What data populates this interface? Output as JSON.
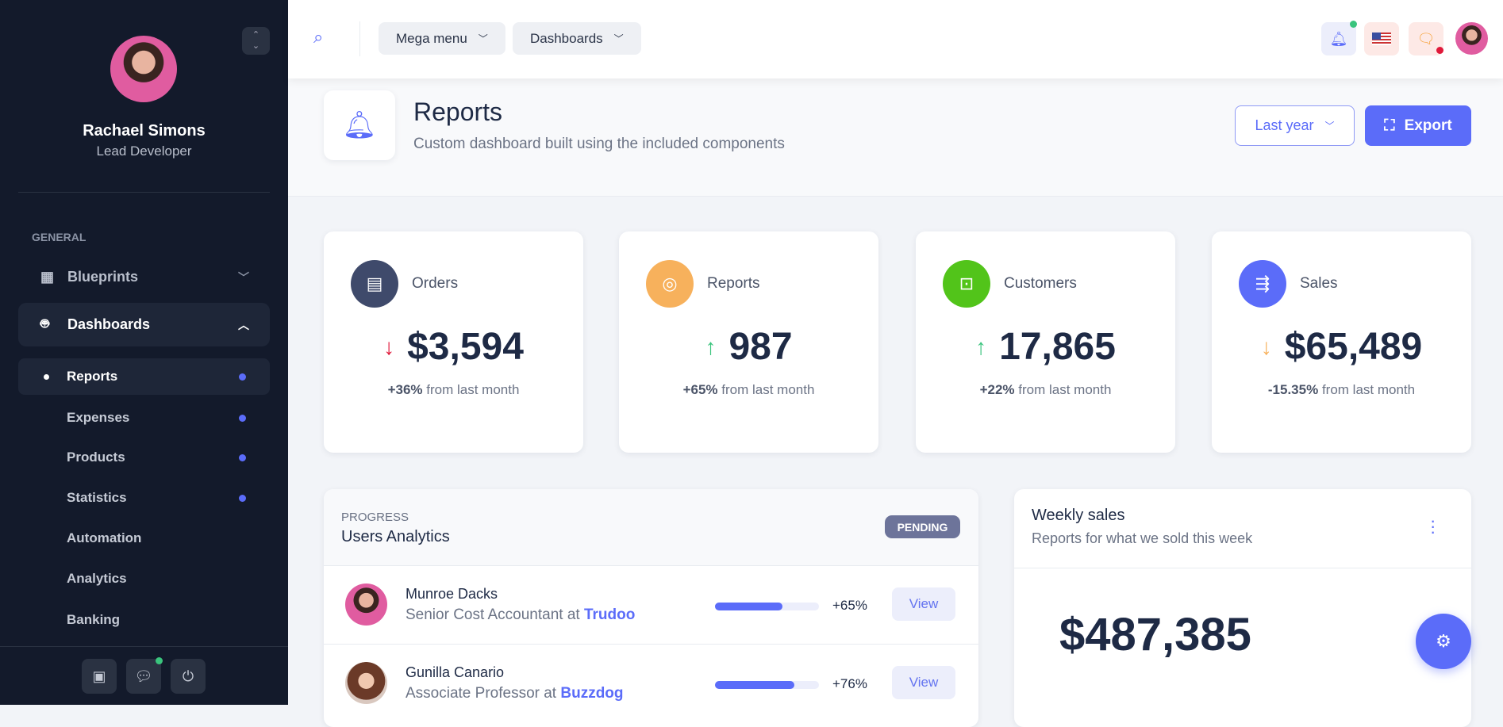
{
  "sidebar": {
    "user": {
      "name": "Rachael Simons",
      "role": "Lead Developer"
    },
    "section": "GENERAL",
    "items": [
      {
        "label": "Blueprints"
      },
      {
        "label": "Dashboards"
      }
    ],
    "subitems": [
      {
        "label": "Reports",
        "dot": true
      },
      {
        "label": "Expenses",
        "dot": true
      },
      {
        "label": "Products",
        "dot": true
      },
      {
        "label": "Statistics",
        "dot": true
      },
      {
        "label": "Automation",
        "dot": false
      },
      {
        "label": "Analytics",
        "dot": false
      },
      {
        "label": "Banking",
        "dot": false
      }
    ]
  },
  "header": {
    "mega_menu": "Mega menu",
    "dashboards": "Dashboards"
  },
  "page": {
    "title": "Reports",
    "subtitle": "Custom dashboard built using the included components",
    "period": "Last year",
    "export": "Export"
  },
  "stats": [
    {
      "label": "Orders",
      "value": "$3,594",
      "change": "+36%",
      "suffix": "from last month",
      "trend": "down",
      "arrow_color": "#e0193a",
      "icon_color": "#3f4a6b"
    },
    {
      "label": "Reports",
      "value": "987",
      "change": "+65%",
      "suffix": "from last month",
      "trend": "up",
      "arrow_color": "#3ac47d",
      "icon_color": "#f7b15c"
    },
    {
      "label": "Customers",
      "value": "17,865",
      "change": "+22%",
      "suffix": "from last month",
      "trend": "up",
      "arrow_color": "#3ac47d",
      "icon_color": "#52c41a"
    },
    {
      "label": "Sales",
      "value": "$65,489",
      "change": "-15.35%",
      "suffix": "from last month",
      "trend": "down",
      "arrow_color": "#f7b15c",
      "icon_color": "#5b6cf9"
    }
  ],
  "analytics": {
    "eyebrow": "PROGRESS",
    "title": "Users Analytics",
    "badge": "PENDING",
    "rows": [
      {
        "name": "Munroe Dacks",
        "job": "Senior Cost Accountant at",
        "company": "Trudoo",
        "progress": 65,
        "pct": "+65%",
        "action": "View"
      },
      {
        "name": "Gunilla Canario",
        "job": "Associate Professor at",
        "company": "Buzzdog",
        "progress": 76,
        "pct": "+76%",
        "action": "View"
      }
    ]
  },
  "weekly": {
    "title": "Weekly sales",
    "subtitle": "Reports for what we sold this week",
    "amount": "$487,385"
  }
}
